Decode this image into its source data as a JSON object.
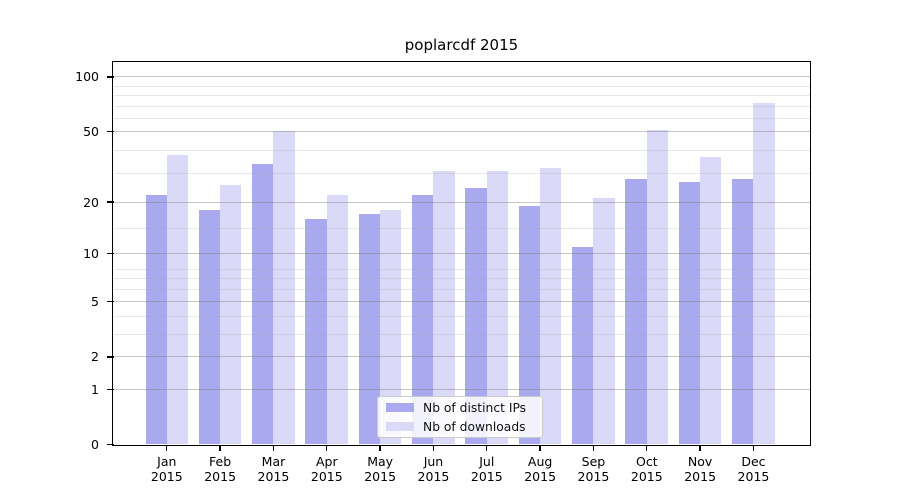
{
  "title": "poplarcdf 2015",
  "chart_data": {
    "type": "bar",
    "title": "poplarcdf 2015",
    "categories": [
      "Jan 2015",
      "Feb 2015",
      "Mar 2015",
      "Apr 2015",
      "May 2015",
      "Jun 2015",
      "Jul 2015",
      "Aug 2015",
      "Sep 2015",
      "Oct 2015",
      "Nov 2015",
      "Dec 2015"
    ],
    "series": [
      {
        "name": "Nb of distinct IPs",
        "color": "#a9a9f0",
        "values": [
          22,
          18,
          33,
          16,
          17,
          22,
          24,
          19,
          11,
          27,
          26,
          27
        ]
      },
      {
        "name": "Nb of downloads",
        "color": "#dadaf8",
        "values": [
          37,
          25,
          50,
          22,
          18,
          30,
          30,
          31,
          21,
          51,
          36,
          72
        ]
      }
    ],
    "xlabel": "",
    "ylabel": "",
    "y_axis": {
      "scale": "log1p",
      "major_ticks": [
        0,
        1,
        2,
        5,
        10,
        20,
        50,
        100
      ],
      "tick_labels": [
        "0",
        "1",
        "2",
        "5",
        "10",
        "20",
        "50",
        "100"
      ],
      "minor_gridlines": [
        3,
        4,
        6,
        7,
        8,
        14,
        29,
        39,
        59,
        69,
        79,
        89
      ],
      "ylim": [
        0,
        119
      ]
    },
    "grid": true,
    "grid_over_bars": true,
    "legend_position": "lower center"
  },
  "legend": {
    "items": [
      {
        "label": "Nb of distinct IPs"
      },
      {
        "label": "Nb of downloads"
      }
    ]
  }
}
